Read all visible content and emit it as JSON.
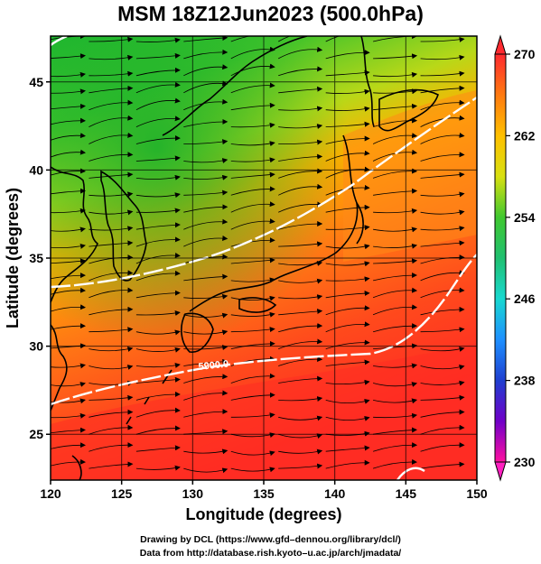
{
  "title": "MSM 18Z12Jun2023 (500.0hPa)",
  "axes": {
    "xlabel": "Longitude (degrees)",
    "ylabel": "Latitude  (degrees)",
    "xlim": [
      120,
      150
    ],
    "ylim": [
      22.4,
      47.6
    ],
    "xticks": [
      "120",
      "125",
      "130",
      "135",
      "140",
      "145",
      "150"
    ],
    "yticks": [
      "25",
      "30",
      "35",
      "40",
      "45"
    ],
    "grid": true
  },
  "colorbar": {
    "min": 230,
    "max": 270,
    "labels": [
      "270",
      "262",
      "254",
      "246",
      "238",
      "230"
    ],
    "colors": [
      "#ff1493",
      "#c000c0",
      "#6a00c8",
      "#1a1aa0",
      "#1f4fe0",
      "#1ea0ff",
      "#18d8d0",
      "#20c860",
      "#22b830",
      "#7ad020",
      "#d8e010",
      "#ffc000",
      "#ff8000",
      "#ff3a1a",
      "#ff2030"
    ]
  },
  "contour_label": "5900.0",
  "credit": {
    "line1": "Drawing by DCL (https://www.gfd–dennou.org/library/dcl/)",
    "line2": "Data from http://database.rish.kyoto–u.ac.jp/arch/jmadata/"
  },
  "map": {
    "field": "temperature (K) with streamlines",
    "colors": {
      "cold": "#24c028",
      "mid": "#e8e018",
      "warm": "#ff8c10",
      "hot": "#ff3020",
      "contour": "#ffffff",
      "coast": "#000000"
    }
  }
}
